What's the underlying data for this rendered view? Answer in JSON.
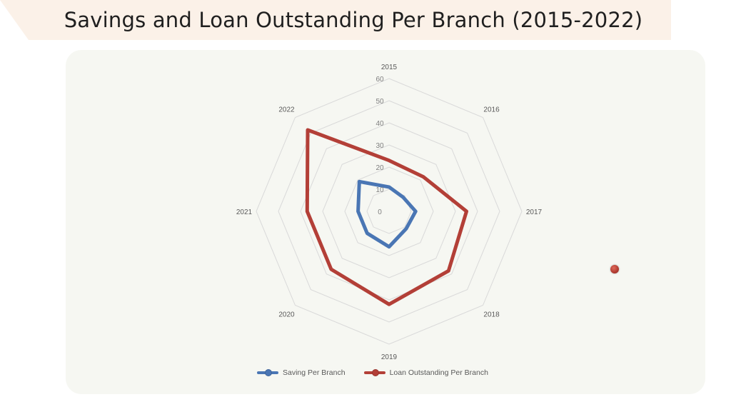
{
  "title": "Savings and Loan Outstanding Per Branch (2015-2022)",
  "chart_data": {
    "type": "radar",
    "categories": [
      "2015",
      "2016",
      "2017",
      "2018",
      "2019",
      "2020",
      "2021",
      "2022"
    ],
    "radial_ticks": [
      "0",
      "10",
      "20",
      "30",
      "40",
      "50",
      "60"
    ],
    "rlim": [
      0,
      60
    ],
    "grid": true,
    "legend_position": "bottom",
    "series": [
      {
        "name": "Saving Per Branch",
        "color": "#4a76b4",
        "values": [
          11,
          9,
          12,
          11,
          16,
          14,
          14,
          19
        ]
      },
      {
        "name": "Loan Outstanding Per Branch",
        "color": "#b33f37",
        "values": [
          23,
          22,
          35,
          38,
          42,
          37,
          37,
          52
        ]
      }
    ]
  },
  "colors": {
    "banner": "#fbf1e8",
    "panel": "#f6f7f2",
    "grid": "#d9d9d9",
    "text": "#595959"
  }
}
